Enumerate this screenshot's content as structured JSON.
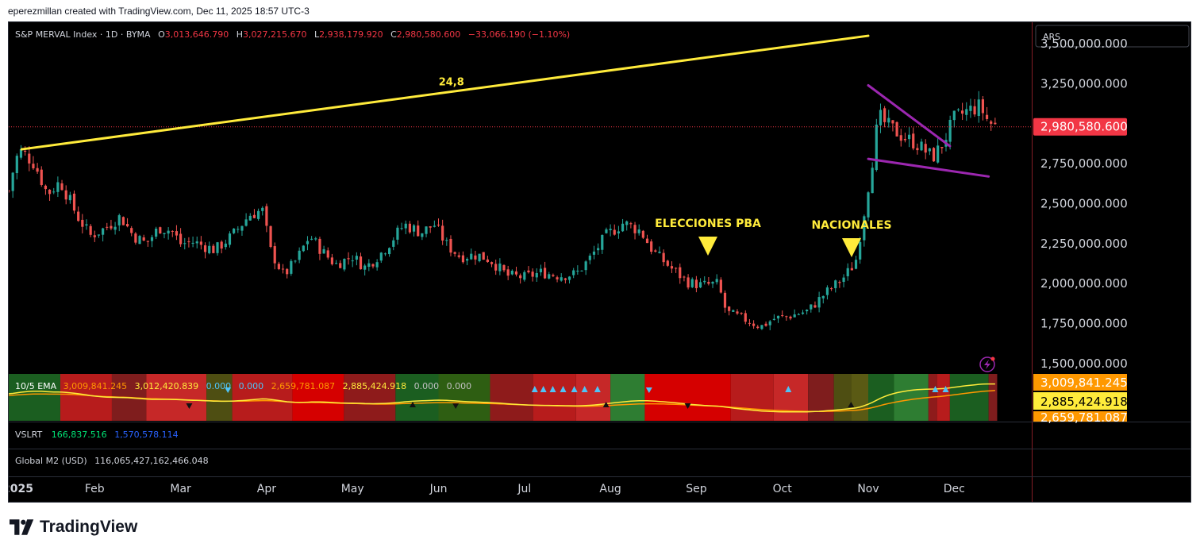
{
  "header": {
    "caption": "eperezmillan created with TradingView.com, Dec 11, 2025 18:57 UTC-3"
  },
  "legend": {
    "symbol": "S&P MERVAL Index · 1D · BYMA",
    "o_label": "O",
    "o": "3,013,646.790",
    "h_label": "H",
    "h": "3,027,215.670",
    "l_label": "L",
    "l": "2,938,179.920",
    "c_label": "C",
    "c": "2,980,580.600",
    "change": "−33,066.190 (−1.10%)"
  },
  "currency": "ARS",
  "annotations": {
    "trendline_label": "24,8",
    "event1": "ELECCIONES PBA",
    "event2": "NACIONALES"
  },
  "indicators": {
    "ema": {
      "label": "10/5 EMA",
      "values": [
        "3,009,841.245",
        "3,012,420.839",
        "0.000",
        "0.000",
        "2,659,781.087",
        "2,885,424.918",
        "0.000",
        "0.000"
      ],
      "value_colors": [
        "#ff9800",
        "#ffeb3b",
        "#4fc3f7",
        "#4fc3f7",
        "#ff9800",
        "#ffeb3b",
        "#c0c0c0",
        "#c0c0c0"
      ]
    },
    "vslrt": {
      "label": "VSLRT",
      "value1": "166,837.516",
      "value2": "1,570,578.114"
    },
    "m2": {
      "label": "Global M2 (USD)",
      "value": "116,065,427,162,466.048"
    }
  },
  "price_badges": {
    "last": "2,980,580.600",
    "ema1": "3,009,841.245",
    "ema2": "2,885,424.918",
    "ema3": "2,659,781.087"
  },
  "footer": {
    "brand": "TradingView"
  },
  "colors": {
    "up": "#26a69a",
    "down": "#ef5350",
    "trendline": "#ffeb3b",
    "channel": "#9c27b0",
    "annotation": "#ffeb3b",
    "last_price": "#f23645"
  },
  "chart_data": {
    "type": "candlestick",
    "y_ticks": [
      3500000,
      3250000,
      3000000,
      2750000,
      2500000,
      2250000,
      2000000,
      1750000,
      1500000
    ],
    "y_tick_labels": [
      "3,500,000.000",
      "3,250,000.000",
      "3,000,000.000",
      "2,750,000.000",
      "2,500,000.000",
      "2,250,000.000",
      "2,000,000.000",
      "1,750,000.000",
      "1,500,000.000"
    ],
    "x_labels": [
      {
        "label": "2025",
        "month": 0
      },
      {
        "label": "Feb",
        "month": 1
      },
      {
        "label": "Mar",
        "month": 2
      },
      {
        "label": "Apr",
        "month": 3
      },
      {
        "label": "May",
        "month": 4
      },
      {
        "label": "Jun",
        "month": 5
      },
      {
        "label": "Jul",
        "month": 6
      },
      {
        "label": "Aug",
        "month": 7
      },
      {
        "label": "Sep",
        "month": 8
      },
      {
        "label": "Oct",
        "month": 9
      },
      {
        "label": "Nov",
        "month": 10
      },
      {
        "label": "Dec",
        "month": 11
      }
    ],
    "close_path": [
      [
        0,
        2580000
      ],
      [
        0.08,
        2780000
      ],
      [
        0.15,
        2830000
      ],
      [
        0.3,
        2750000
      ],
      [
        0.45,
        2560000
      ],
      [
        0.6,
        2640000
      ],
      [
        0.8,
        2420000
      ],
      [
        0.95,
        2300000
      ],
      [
        1.1,
        2340000
      ],
      [
        1.3,
        2420000
      ],
      [
        1.45,
        2300000
      ],
      [
        1.6,
        2250000
      ],
      [
        1.75,
        2350000
      ],
      [
        1.9,
        2330000
      ],
      [
        2.0,
        2250000
      ],
      [
        2.15,
        2260000
      ],
      [
        2.4,
        2210000
      ],
      [
        2.6,
        2300000
      ],
      [
        2.8,
        2430000
      ],
      [
        2.95,
        2460000
      ],
      [
        3.05,
        2200000
      ],
      [
        3.2,
        2050000
      ],
      [
        3.35,
        2150000
      ],
      [
        3.5,
        2300000
      ],
      [
        3.65,
        2200000
      ],
      [
        3.8,
        2120000
      ],
      [
        4.0,
        2170000
      ],
      [
        4.15,
        2100000
      ],
      [
        4.35,
        2200000
      ],
      [
        4.6,
        2370000
      ],
      [
        4.8,
        2320000
      ],
      [
        4.95,
        2370000
      ],
      [
        5.1,
        2240000
      ],
      [
        5.25,
        2170000
      ],
      [
        5.45,
        2180000
      ],
      [
        5.6,
        2150000
      ],
      [
        5.8,
        2050000
      ],
      [
        6.0,
        2040000
      ],
      [
        6.2,
        2070000
      ],
      [
        6.4,
        2050000
      ],
      [
        6.6,
        2060000
      ],
      [
        6.75,
        2150000
      ],
      [
        6.95,
        2300000
      ],
      [
        7.15,
        2380000
      ],
      [
        7.35,
        2330000
      ],
      [
        7.5,
        2200000
      ],
      [
        7.7,
        2100000
      ],
      [
        7.9,
        2010000
      ],
      [
        8.05,
        1990000
      ],
      [
        8.25,
        2000000
      ],
      [
        8.35,
        1820000
      ],
      [
        8.55,
        1780000
      ],
      [
        8.75,
        1730000
      ],
      [
        8.9,
        1780000
      ],
      [
        9.1,
        1800000
      ],
      [
        9.3,
        1830000
      ],
      [
        9.5,
        1940000
      ],
      [
        9.7,
        2030000
      ],
      [
        9.85,
        2130000
      ],
      [
        9.95,
        2440000
      ],
      [
        10.05,
        2780000
      ],
      [
        10.12,
        3050000
      ],
      [
        10.2,
        3000000
      ],
      [
        10.4,
        2920000
      ],
      [
        10.55,
        2880000
      ],
      [
        10.75,
        2790000
      ],
      [
        10.85,
        2860000
      ],
      [
        11.0,
        3030000
      ],
      [
        11.15,
        3080000
      ],
      [
        11.3,
        3110000
      ],
      [
        11.4,
        3010000
      ],
      [
        11.5,
        2980580
      ]
    ],
    "trendline": {
      "start": [
        0.15,
        2840000
      ],
      "end": [
        10.0,
        3550000
      ],
      "label": "24,8"
    },
    "channel": {
      "upper": [
        [
          10.0,
          3240000
        ],
        [
          10.95,
          2860000
        ]
      ],
      "lower": [
        [
          10.0,
          2780000
        ],
        [
          11.4,
          2670000
        ]
      ]
    },
    "last_price": 2980580.6,
    "ylim": [
      1450000,
      3600000
    ]
  }
}
